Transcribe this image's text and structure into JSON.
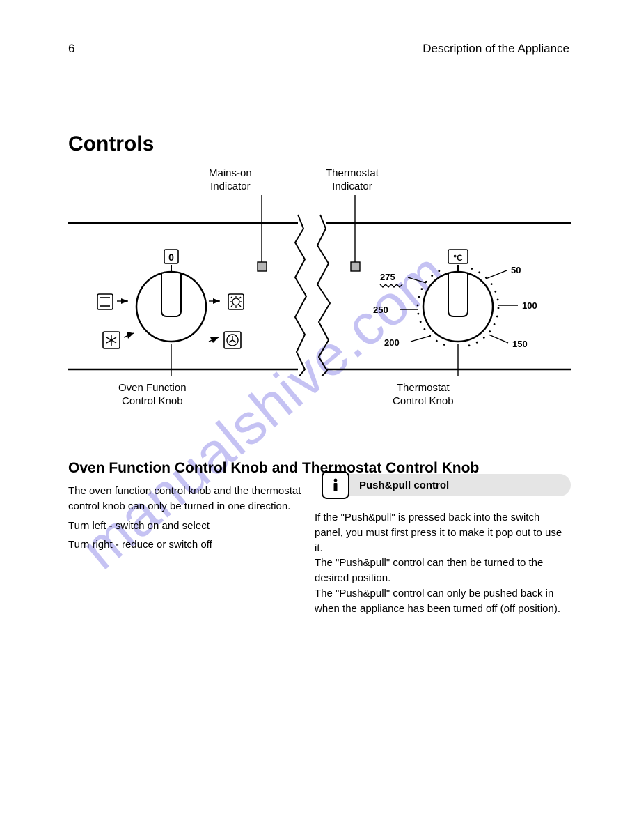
{
  "page_number": "6",
  "section_header": "Description of the Appliance",
  "watermark_text": "manualshive.com",
  "watermark_color": "#5a50dc59",
  "heading_controls": "Controls",
  "panel": {
    "label_power": "Mains-on\nIndicator",
    "label_thermo": "Thermostat\nIndicator",
    "label_function": "Oven Function\nControl Knob",
    "label_temp": "Thermostat\nControl Knob",
    "temp_unit": "°C",
    "temp_labels": [
      "50",
      "100",
      "150",
      "200",
      "250",
      "275"
    ],
    "temp_grill_icon": true,
    "zero_label": "0",
    "dial": {
      "stroke": "#000000",
      "fill": "#ffffff",
      "pilot_fill": "#b5b5b5"
    }
  },
  "functions": {
    "heading": "Oven Function Control Knob and Thermostat Control Knob",
    "lines": [
      "The oven function control knob and the thermostat control knob can only be turned in one direction.",
      "Turn left - switch on and select",
      "Turn right - reduce or switch off"
    ]
  },
  "pushpull": {
    "title": " Push&pull control",
    "lines": [
      "If the \"Push&pull\" is pressed back into the switch panel, you must first press it to make it pop out to use it.",
      "The \"Push&pull\" control can then be turned to the desired position.",
      "The \"Push&pull\" control can only be pushed back in when the appliance has been turned off (off position)."
    ]
  },
  "colors": {
    "text": "#000000",
    "background": "#ffffff",
    "banner_bg": "#e5e5e5"
  }
}
